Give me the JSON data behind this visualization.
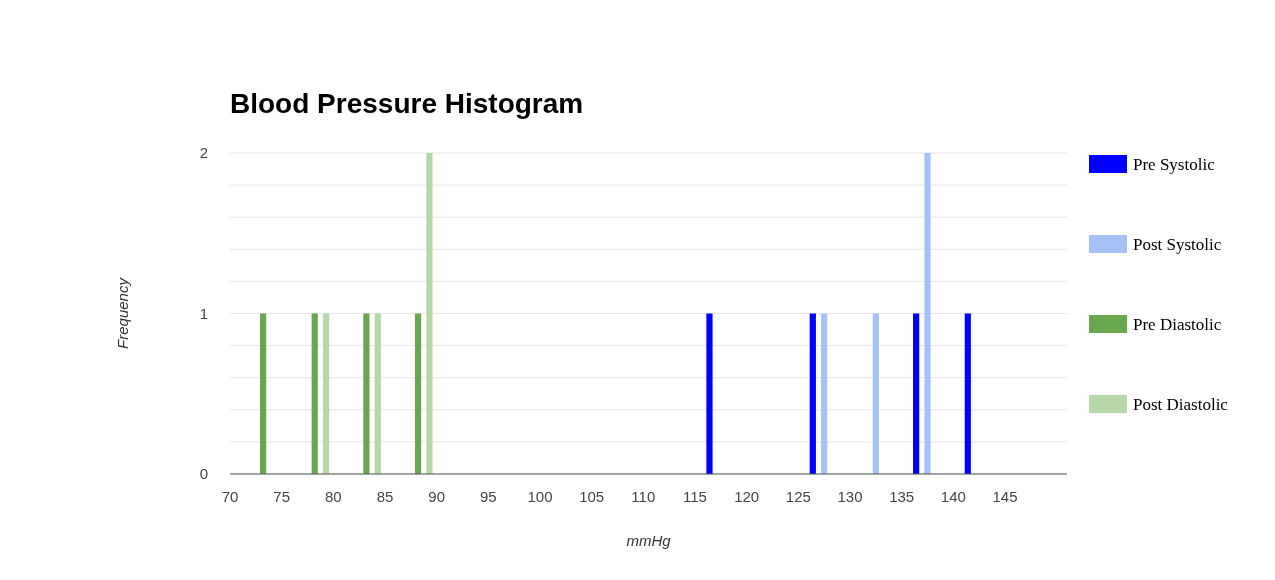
{
  "chart_data": {
    "type": "histogram",
    "title": "Blood Pressure Histogram",
    "xlabel": "mmHg",
    "ylabel": "Frequency",
    "bins": [
      70,
      75,
      80,
      85,
      90,
      95,
      100,
      105,
      110,
      115,
      120,
      125,
      130,
      135,
      140,
      145,
      150
    ],
    "series": [
      {
        "name": "Pre Systolic",
        "color": "#0000ff",
        "values": [
          0,
          0,
          0,
          0,
          0,
          0,
          0,
          0,
          0,
          1,
          0,
          1,
          0,
          1,
          1,
          0
        ]
      },
      {
        "name": "Post Systolic",
        "color": "#a4c2f4",
        "values": [
          0,
          0,
          0,
          0,
          0,
          0,
          0,
          0,
          0,
          0,
          0,
          1,
          1,
          2,
          0,
          0
        ]
      },
      {
        "name": "Pre Diastolic",
        "color": "#6aa84f",
        "values": [
          1,
          1,
          1,
          1,
          0,
          0,
          0,
          0,
          0,
          0,
          0,
          0,
          0,
          0,
          0,
          0
        ]
      },
      {
        "name": "Post Diastolic",
        "color": "#b6d7a8",
        "values": [
          0,
          1,
          1,
          2,
          0,
          0,
          0,
          0,
          0,
          0,
          0,
          0,
          0,
          0,
          0,
          0
        ]
      }
    ],
    "xlim": [
      70,
      151
    ],
    "xticks": [
      70,
      75,
      80,
      85,
      90,
      95,
      100,
      105,
      110,
      115,
      120,
      125,
      130,
      135,
      140,
      145
    ],
    "ylim": [
      0,
      2
    ],
    "yticks": [
      0,
      {
        "value": 0.2,
        "label": null
      },
      {
        "value": 0.4,
        "label": null
      },
      {
        "value": 0.6,
        "label": null
      },
      {
        "value": 0.8,
        "label": null
      },
      1,
      {
        "value": 1.2,
        "label": null
      },
      {
        "value": 1.4,
        "label": null
      },
      {
        "value": 1.6,
        "label": null
      },
      {
        "value": 1.8,
        "label": null
      },
      2
    ],
    "grid": "y",
    "legend": "right"
  }
}
